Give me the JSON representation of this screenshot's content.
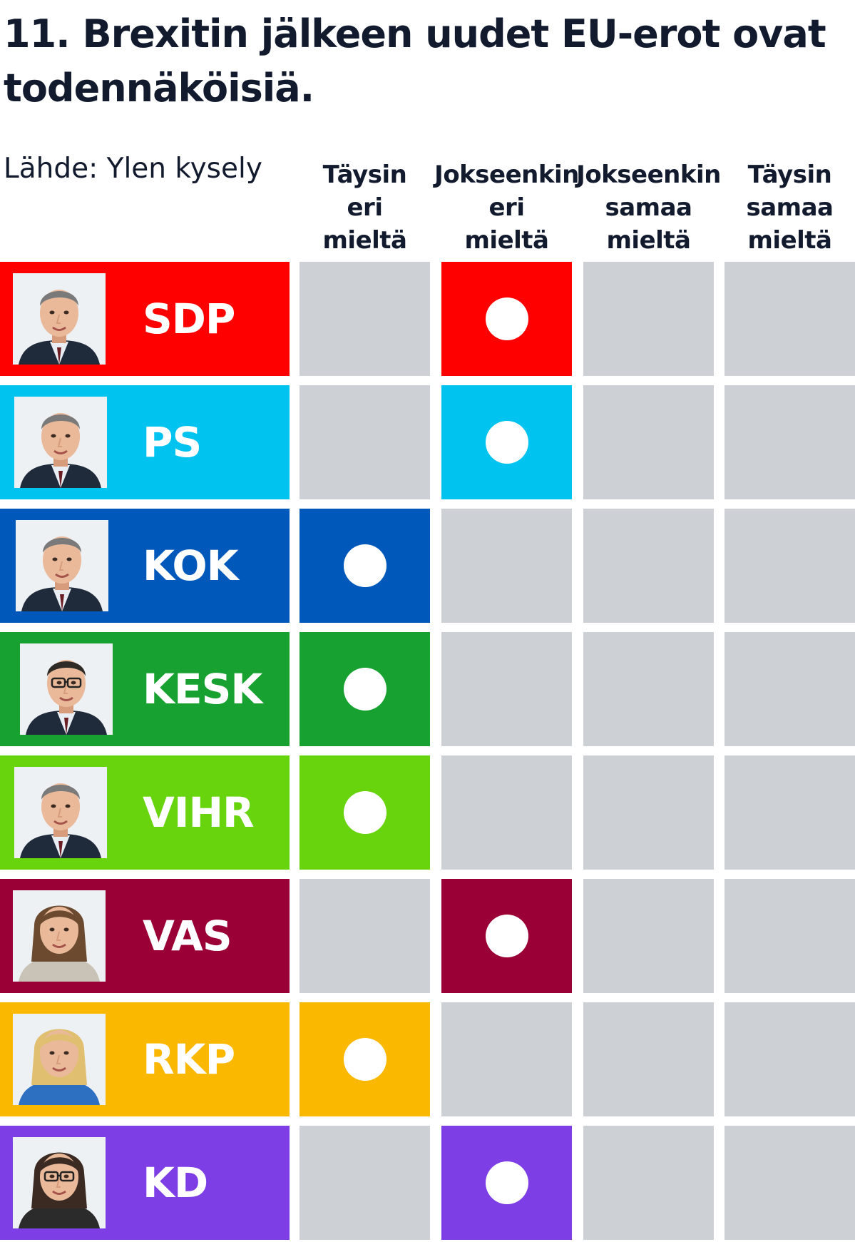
{
  "title": "11. Brexitin jälkeen uudet EU-erot ovat todennäköisiä.",
  "source": "Lähde: Ylen kysely",
  "columns": [
    [
      "Täysin",
      "eri",
      "mieltä"
    ],
    [
      "Jokseenkin",
      "eri",
      "mieltä"
    ],
    [
      "Jokseenkin",
      "samaa",
      "mieltä"
    ],
    [
      "Täysin",
      "samaa",
      "mieltä"
    ]
  ],
  "colors": {
    "empty_cell": "#cdd0d4",
    "dot": "#ffffff",
    "text": "#121a2e"
  },
  "chart_data": {
    "type": "table",
    "title": "11. Brexitin jälkeen uudet EU-erot ovat todennäköisiä.",
    "categories": [
      "Täysin eri mieltä",
      "Jokseenkin eri mieltä",
      "Jokseenkin samaa mieltä",
      "Täysin samaa mieltä"
    ],
    "rows": [
      {
        "party": "SDP",
        "color": "#ff0000",
        "answer": 1,
        "portrait_icon": "man-portrait-icon"
      },
      {
        "party": "PS",
        "color": "#00c3f0",
        "answer": 1,
        "portrait_icon": "man-portrait-icon"
      },
      {
        "party": "KOK",
        "color": "#0058bb",
        "answer": 0,
        "portrait_icon": "man-portrait-icon"
      },
      {
        "party": "KESK",
        "color": "#17a130",
        "answer": 0,
        "portrait_icon": "man-glasses-portrait-icon"
      },
      {
        "party": "VIHR",
        "color": "#67d40d",
        "answer": 0,
        "portrait_icon": "man-portrait-icon"
      },
      {
        "party": "VAS",
        "color": "#9a0035",
        "answer": 1,
        "portrait_icon": "woman-portrait-icon"
      },
      {
        "party": "RKP",
        "color": "#fbb800",
        "answer": 0,
        "portrait_icon": "woman-blonde-portrait-icon"
      },
      {
        "party": "KD",
        "color": "#7d3ee6",
        "answer": 1,
        "portrait_icon": "woman-glasses-portrait-icon"
      }
    ]
  }
}
